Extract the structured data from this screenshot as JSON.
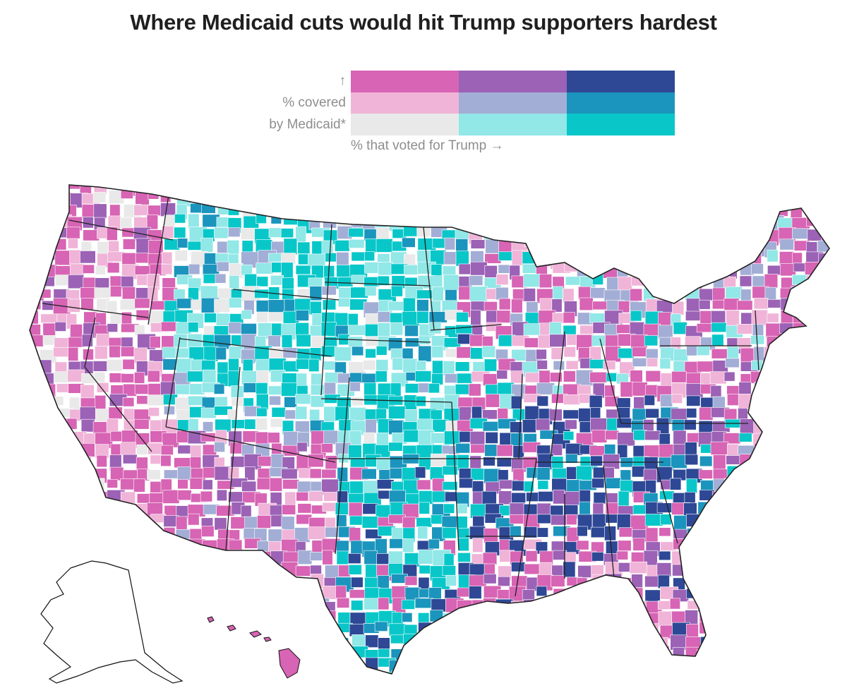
{
  "title": "Where Medicaid cuts would hit Trump supporters hardest",
  "legend": {
    "arrow_up": "↑",
    "y_label_line1": "% covered",
    "y_label_line2": "by Medicaid*",
    "x_label": "% that voted for Trump →",
    "palette": [
      [
        "#d764b4",
        "#9b62b6",
        "#2e4896"
      ],
      [
        "#f0b4d8",
        "#a3aed6",
        "#1b95bd"
      ],
      [
        "#e9e9e9",
        "#92e7e7",
        "#09c7c9"
      ]
    ]
  },
  "map": {
    "country": "United States",
    "unit": "counties",
    "insets": [
      "Alaska",
      "Hawaii"
    ]
  }
}
